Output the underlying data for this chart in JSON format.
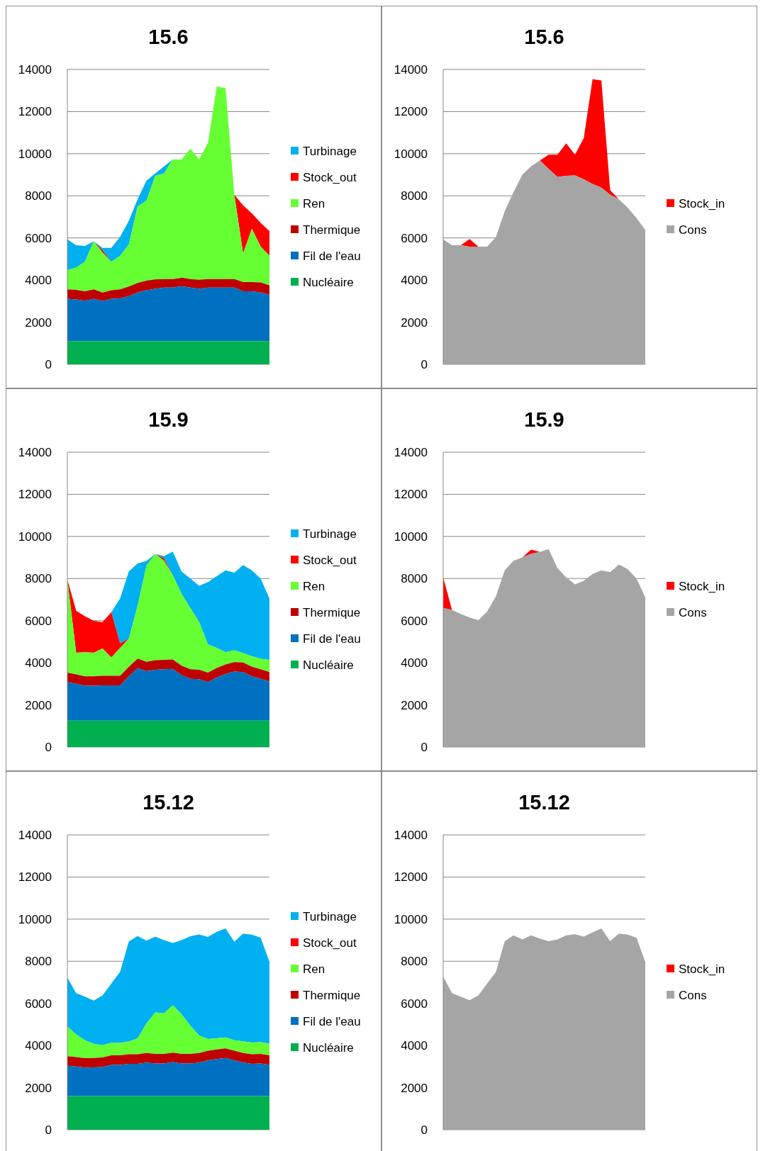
{
  "chart_data": [
    {
      "type": "area",
      "stacked": true,
      "title": "15.6",
      "categories": [
        null,
        null,
        null,
        null,
        null,
        null,
        null,
        null,
        null,
        null,
        null,
        null,
        null,
        null,
        null,
        null,
        null,
        null,
        null,
        null,
        null,
        null,
        null,
        null
      ],
      "ylim": [
        0,
        14000
      ],
      "yticks": [
        0,
        2000,
        4000,
        6000,
        8000,
        10000,
        12000,
        14000
      ],
      "grid": "y",
      "legend": "right",
      "tick_labels": "y",
      "series": [
        {
          "name": "Nucléaire",
          "color": "#00b050",
          "values": [
            1100,
            1100,
            1100,
            1100,
            1100,
            1100,
            1100,
            1100,
            1100,
            1100,
            1100,
            1100,
            1100,
            1100,
            1100,
            1100,
            1100,
            1100,
            1100,
            1100,
            1100,
            1100,
            1100,
            1100
          ]
        },
        {
          "name": "Fil de l'eau",
          "color": "#0070c0",
          "values": [
            2010,
            1980,
            1920,
            2010,
            1900,
            2010,
            2030,
            2140,
            2310,
            2420,
            2480,
            2540,
            2540,
            2610,
            2540,
            2480,
            2540,
            2540,
            2540,
            2540,
            2370,
            2370,
            2310,
            2200
          ]
        },
        {
          "name": "Thermique",
          "color": "#c00000",
          "values": [
            450,
            450,
            450,
            450,
            410,
            410,
            430,
            450,
            450,
            450,
            450,
            410,
            410,
            400,
            410,
            430,
            410,
            410,
            410,
            410,
            430,
            430,
            480,
            450
          ]
        },
        {
          "name": "Ren",
          "color": "#66ff33",
          "values": [
            920,
            1060,
            1400,
            2280,
            1900,
            1340,
            1590,
            2010,
            3640,
            3800,
            4920,
            5010,
            5680,
            5620,
            6190,
            5730,
            6470,
            9150,
            9060,
            4000,
            1360,
            2540,
            1700,
            1400
          ]
        },
        {
          "name": "Stock_out",
          "color": "#ff0000",
          "values": [
            0,
            0,
            0,
            0,
            100,
            0,
            0,
            0,
            0,
            0,
            0,
            0,
            0,
            0,
            0,
            0,
            0,
            0,
            0,
            0,
            2290,
            730,
            1120,
            1180
          ]
        },
        {
          "name": "Turbinage",
          "color": "#00b0f0",
          "values": [
            1450,
            1060,
            750,
            0,
            120,
            670,
            900,
            1120,
            340,
            950,
            110,
            340,
            0,
            null,
            null,
            null,
            null,
            null,
            null,
            null,
            null,
            null,
            null,
            null
          ]
        }
      ]
    },
    {
      "type": "area",
      "stacked": true,
      "title": "15.6",
      "categories": [
        null,
        null,
        null,
        null,
        null,
        null,
        null,
        null,
        null,
        null,
        null,
        null,
        null,
        null,
        null,
        null,
        null,
        null,
        null,
        null,
        null,
        null,
        null,
        null
      ],
      "ylim": [
        0,
        14000
      ],
      "yticks": [
        0,
        2000,
        4000,
        6000,
        8000,
        10000,
        12000,
        14000
      ],
      "grid": "y",
      "legend": "right",
      "tick_labels": "y",
      "series": [
        {
          "name": "Cons",
          "color": "#a5a5a5",
          "values": [
            5930,
            5650,
            5650,
            5590,
            5590,
            5590,
            6040,
            7270,
            8170,
            9000,
            9400,
            9680,
            9280,
            8890,
            8950,
            8970,
            8780,
            8560,
            8390,
            8050,
            7830,
            7440,
            6940,
            6380
          ]
        },
        {
          "name": "Stock_in",
          "color": "#ff0000",
          "values": [
            0,
            0,
            0,
            360,
            0,
            0,
            0,
            0,
            0,
            0,
            0,
            0,
            670,
            1060,
            1540,
            980,
            1960,
            4980,
            5090,
            220,
            0,
            0,
            0,
            0
          ]
        }
      ]
    },
    {
      "type": "area",
      "stacked": true,
      "title": "15.9",
      "categories": [
        null,
        null,
        null,
        null,
        null,
        null,
        null,
        null,
        null,
        null,
        null,
        null,
        null,
        null,
        null,
        null,
        null,
        null,
        null,
        null,
        null,
        null,
        null,
        null
      ],
      "ylim": [
        0,
        14000
      ],
      "yticks": [
        0,
        2000,
        4000,
        6000,
        8000,
        10000,
        12000,
        14000
      ],
      "grid": "y",
      "legend": "right",
      "tick_labels": "y",
      "series": [
        {
          "name": "Nucléaire",
          "color": "#00b050",
          "values": [
            1250,
            1250,
            1250,
            1250,
            1250,
            1250,
            1250,
            1250,
            1250,
            1250,
            1250,
            1250,
            1250,
            1250,
            1250,
            1250,
            1250,
            1250,
            1250,
            1250,
            1250,
            1250,
            1250,
            1250
          ]
        },
        {
          "name": "Fil de l'eau",
          "color": "#0070c0",
          "values": [
            1830,
            1750,
            1660,
            1660,
            1680,
            1680,
            1680,
            2110,
            2500,
            2350,
            2420,
            2440,
            2460,
            2160,
            1990,
            1970,
            1830,
            2050,
            2220,
            2330,
            2310,
            2110,
            1990,
            1860
          ]
        },
        {
          "name": "Thermique",
          "color": "#c00000",
          "values": [
            450,
            450,
            450,
            450,
            450,
            450,
            450,
            450,
            450,
            450,
            450,
            450,
            450,
            450,
            450,
            450,
            450,
            450,
            450,
            450,
            450,
            450,
            450,
            450
          ]
        },
        {
          "name": "Ren",
          "color": "#66ff33",
          "values": [
            4420,
            1030,
            1140,
            1120,
            1300,
            870,
            1320,
            1340,
            2510,
            4560,
            5050,
            4700,
            4000,
            3410,
            2910,
            2260,
            1340,
            950,
            580,
            560,
            450,
            500,
            500,
            580
          ]
        },
        {
          "name": "Stock_out",
          "color": "#ff0000",
          "values": [
            0,
            1990,
            1710,
            1510,
            1250,
            2150,
            220,
            0,
            0,
            0,
            0,
            110,
            0,
            0,
            0,
            0,
            0,
            0,
            0,
            0,
            0,
            0,
            0,
            0
          ]
        },
        {
          "name": "Turbinage",
          "color": "#00b0f0",
          "values": [
            0,
            0,
            0,
            0,
            0,
            0,
            2130,
            3190,
            2010,
            220,
            0,
            110,
            1120,
            1060,
            1400,
            1730,
            2960,
            3410,
            3890,
            3690,
            4180,
            4080,
            3800,
            2910
          ]
        }
      ]
    },
    {
      "type": "area",
      "stacked": true,
      "title": "15.9",
      "categories": [
        null,
        null,
        null,
        null,
        null,
        null,
        null,
        null,
        null,
        null,
        null,
        null,
        null,
        null,
        null,
        null,
        null,
        null,
        null,
        null,
        null,
        null,
        null,
        null
      ],
      "ylim": [
        0,
        14000
      ],
      "yticks": [
        0,
        2000,
        4000,
        6000,
        8000,
        10000,
        12000,
        14000
      ],
      "grid": "y",
      "legend": "right",
      "tick_labels": "y",
      "series": [
        {
          "name": "Cons",
          "color": "#a5a5a5",
          "values": [
            6600,
            6510,
            6320,
            6150,
            6020,
            6430,
            7160,
            8390,
            8840,
            9000,
            9170,
            9260,
            9400,
            8500,
            8050,
            7720,
            7890,
            8220,
            8390,
            8300,
            8670,
            8450,
            8000,
            7100
          ]
        },
        {
          "name": "Stock_in",
          "color": "#ff0000",
          "values": [
            1450,
            0,
            0,
            0,
            0,
            0,
            0,
            0,
            0,
            0,
            200,
            0,
            0,
            0,
            0,
            0,
            0,
            0,
            0,
            0,
            0,
            0,
            0,
            0
          ]
        }
      ]
    },
    {
      "type": "area",
      "stacked": true,
      "title": "15.12",
      "categories": [
        null,
        null,
        null,
        null,
        null,
        null,
        null,
        null,
        null,
        null,
        null,
        null,
        null,
        null,
        null,
        null,
        null,
        null,
        null,
        null,
        null,
        null,
        null,
        null
      ],
      "ylim": [
        0,
        14000
      ],
      "yticks": [
        0,
        2000,
        4000,
        6000,
        8000,
        10000,
        12000,
        14000
      ],
      "grid": "y",
      "legend": "right",
      "tick_labels": "y",
      "series": [
        {
          "name": "Nucléaire",
          "color": "#00b050",
          "values": [
            1600,
            1600,
            1600,
            1600,
            1600,
            1600,
            1600,
            1600,
            1600,
            1600,
            1600,
            1600,
            1600,
            1600,
            1600,
            1600,
            1600,
            1600,
            1600,
            1600,
            1600,
            1600,
            1600,
            1600
          ]
        },
        {
          "name": "Fil de l'eau",
          "color": "#0070c0",
          "values": [
            1440,
            1400,
            1350,
            1360,
            1380,
            1480,
            1480,
            1530,
            1530,
            1590,
            1550,
            1550,
            1610,
            1550,
            1550,
            1590,
            1700,
            1760,
            1810,
            1700,
            1590,
            1530,
            1550,
            1480
          ]
        },
        {
          "name": "Thermique",
          "color": "#c00000",
          "values": [
            450,
            450,
            450,
            450,
            450,
            450,
            450,
            450,
            450,
            450,
            450,
            450,
            450,
            450,
            450,
            450,
            450,
            450,
            450,
            450,
            450,
            450,
            450,
            450
          ]
        },
        {
          "name": "Ren",
          "color": "#66ff33",
          "values": [
            1410,
            1080,
            850,
            670,
            580,
            590,
            590,
            610,
            760,
            1400,
            1970,
            1930,
            2250,
            1880,
            1340,
            840,
            560,
            530,
            520,
            500,
            560,
            560,
            560,
            560
          ]
        },
        {
          "name": "Stock_out",
          "color": "#ff0000",
          "values": [
            null,
            null,
            null,
            null,
            null,
            null,
            null,
            null,
            null,
            null,
            null,
            null,
            null,
            null,
            null,
            null,
            null,
            null,
            null,
            null,
            null,
            null,
            null,
            null
          ]
        },
        {
          "name": "Turbinage",
          "color": "#00b0f0",
          "values": [
            2320,
            1960,
            2070,
            2050,
            2370,
            2820,
            3380,
            4750,
            4860,
            3940,
            3600,
            3470,
            2960,
            3520,
            4250,
            4790,
            4840,
            5060,
            5180,
            4680,
            5110,
            5120,
            4960,
            3880
          ]
        }
      ]
    },
    {
      "type": "area",
      "stacked": true,
      "title": "15.12",
      "categories": [
        null,
        null,
        null,
        null,
        null,
        null,
        null,
        null,
        null,
        null,
        null,
        null,
        null,
        null,
        null,
        null,
        null,
        null,
        null,
        null,
        null,
        null,
        null,
        null
      ],
      "ylim": [
        0,
        14000
      ],
      "yticks": [
        0,
        2000,
        4000,
        6000,
        8000,
        10000,
        12000,
        14000
      ],
      "grid": "y",
      "legend": "right",
      "tick_labels": "y",
      "series": [
        {
          "name": "Cons",
          "color": "#a5a5a5",
          "values": [
            7270,
            6490,
            6320,
            6150,
            6380,
            6940,
            7490,
            8950,
            9230,
            9040,
            9230,
            9080,
            8950,
            9040,
            9230,
            9280,
            9170,
            9370,
            9560,
            8950,
            9310,
            9260,
            9120,
            7960
          ]
        },
        {
          "name": "Stock_in",
          "color": "#ff0000",
          "values": [
            null,
            null,
            null,
            null,
            null,
            null,
            null,
            null,
            null,
            null,
            null,
            null,
            null,
            null,
            null,
            null,
            null,
            null,
            null,
            null,
            null,
            null,
            null,
            null
          ]
        }
      ]
    }
  ]
}
